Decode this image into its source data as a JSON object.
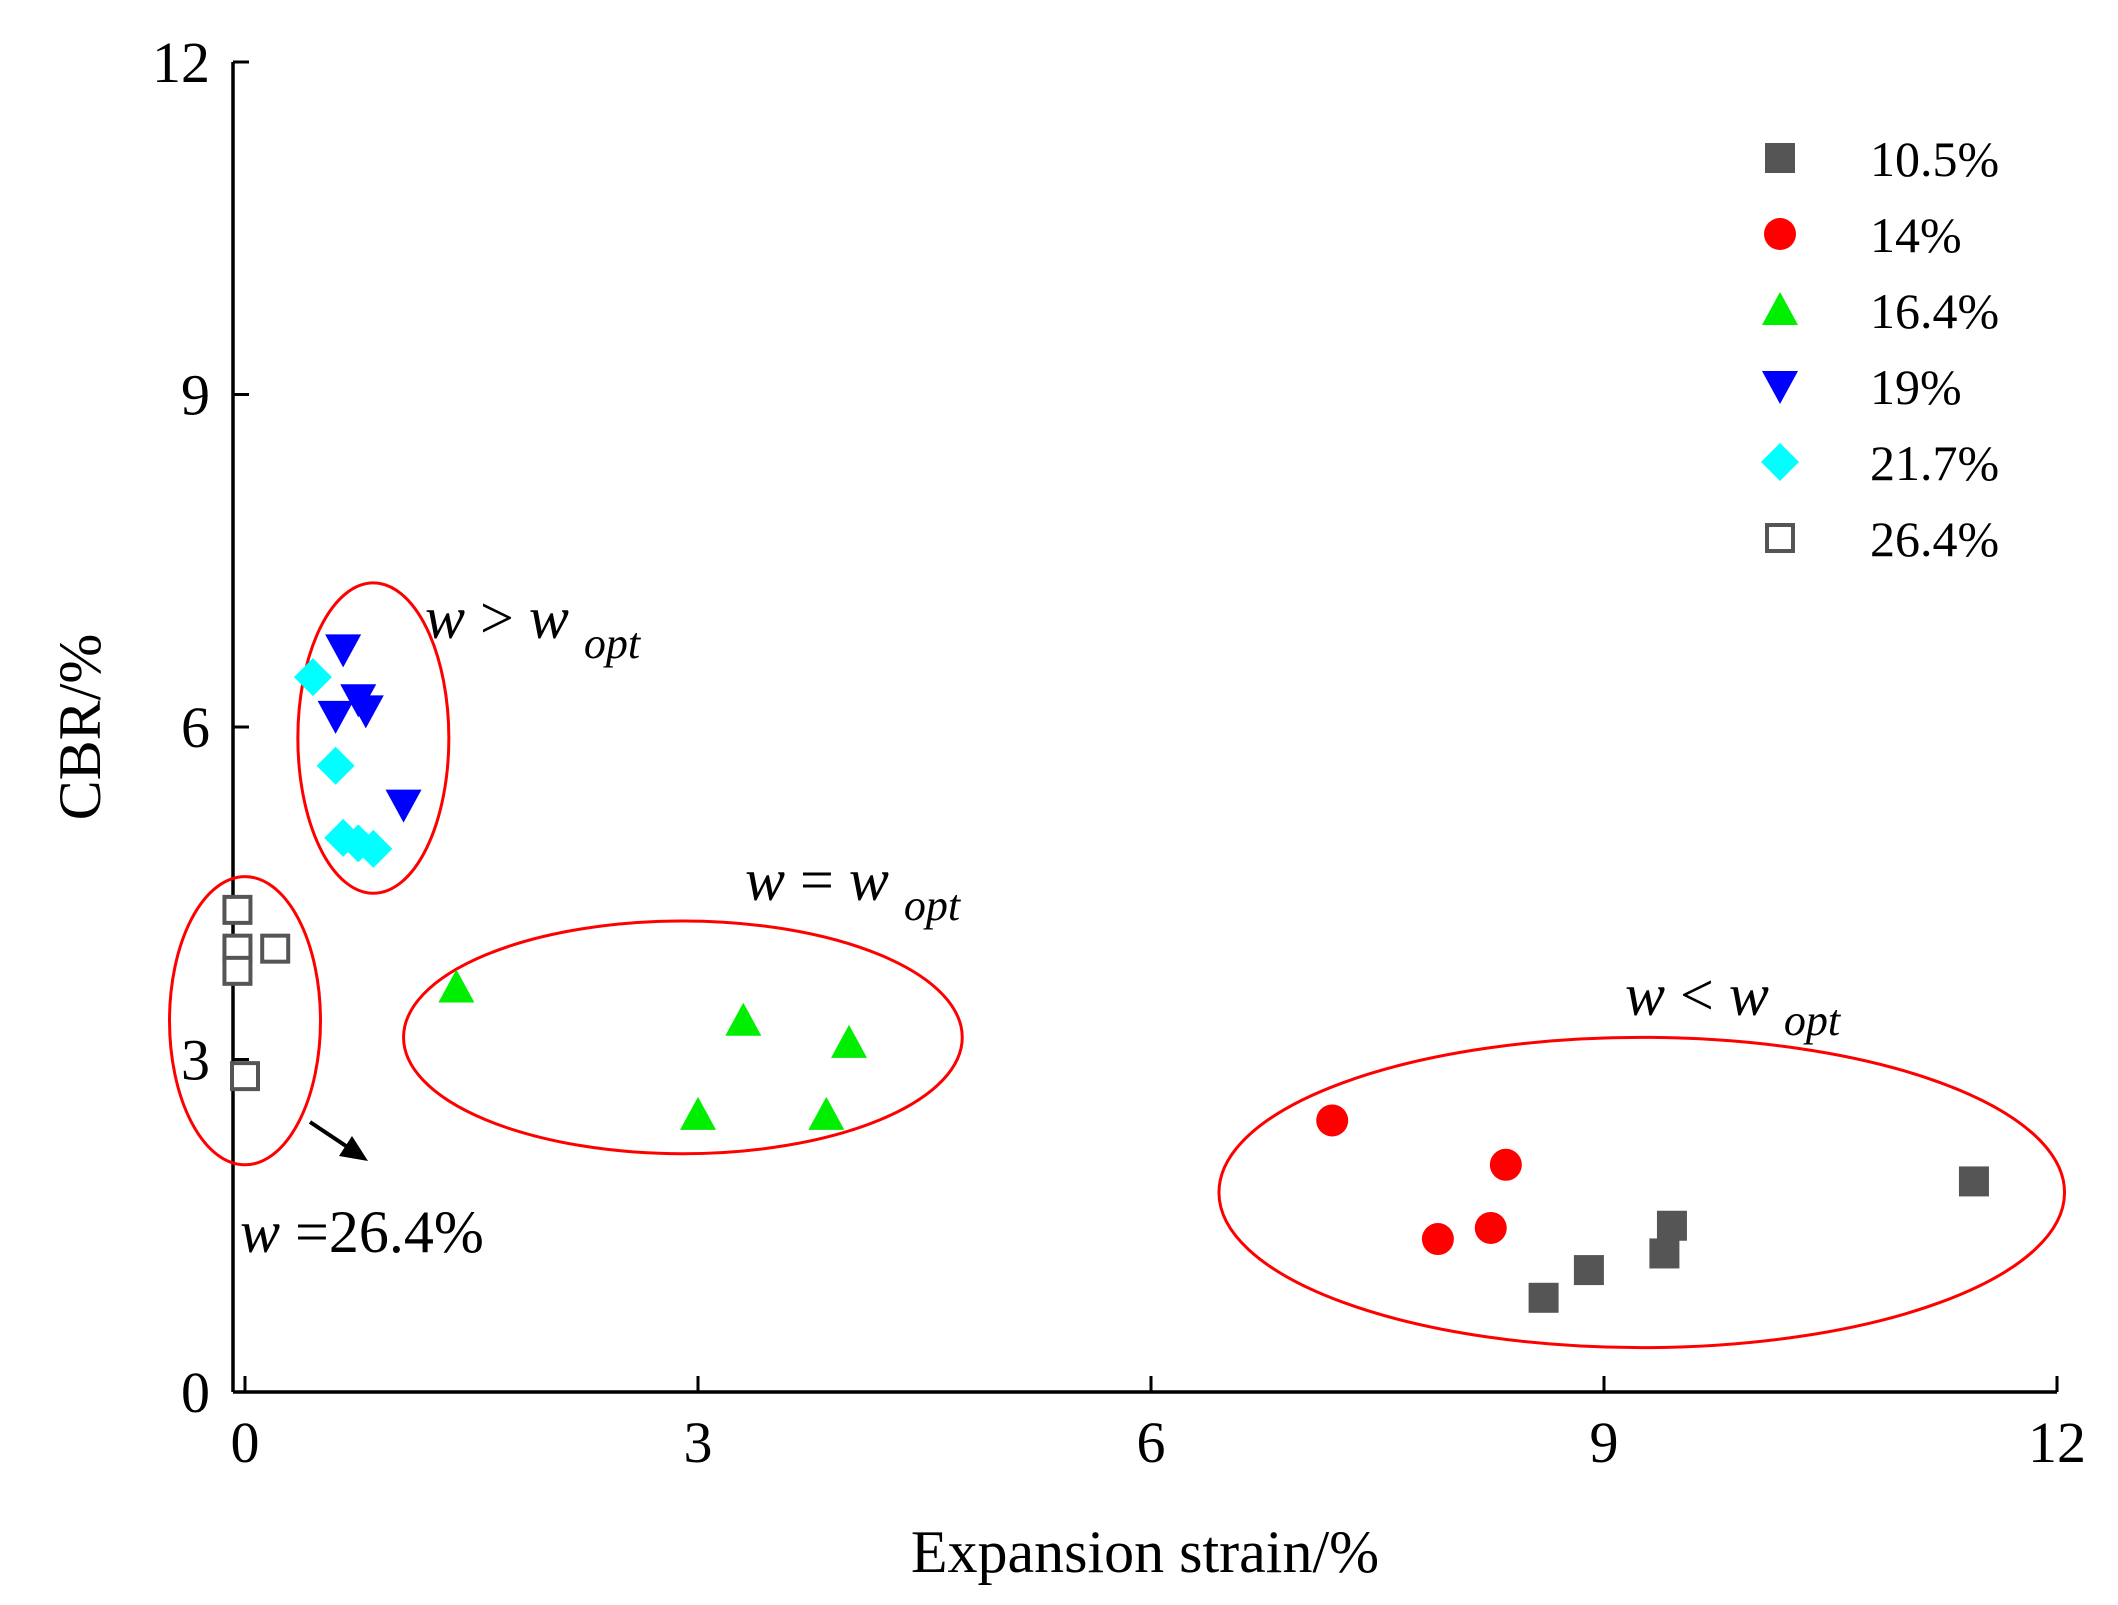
{
  "chart_data": {
    "type": "scatter",
    "title": "",
    "xlabel": "Expansion strain/%",
    "ylabel": "CBR/%",
    "xlim": [
      0,
      12
    ],
    "ylim": [
      0,
      12
    ],
    "xticks": [
      0,
      3,
      6,
      9,
      12
    ],
    "yticks": [
      0,
      3,
      6,
      9,
      12
    ],
    "x_tick_labels": [
      "0",
      "3",
      "6",
      "9",
      "12"
    ],
    "y_tick_labels": [
      "0",
      "3",
      "6",
      "9",
      "12"
    ],
    "grid": false,
    "legend_position": "top-right",
    "series": [
      {
        "name": "10.5%",
        "marker": "filled-square",
        "color": "#555555",
        "points": [
          [
            8.6,
            0.85
          ],
          [
            8.9,
            1.1
          ],
          [
            9.4,
            1.25
          ],
          [
            9.45,
            1.5
          ],
          [
            11.45,
            1.9
          ]
        ]
      },
      {
        "name": "14%",
        "marker": "filled-circle",
        "color": "#ff0000",
        "points": [
          [
            7.2,
            2.45
          ],
          [
            8.35,
            2.05
          ],
          [
            7.9,
            1.38
          ],
          [
            8.25,
            1.48
          ]
        ]
      },
      {
        "name": "16.4%",
        "marker": "filled-triangle-up",
        "color": "#00ee00",
        "points": [
          [
            1.4,
            3.65
          ],
          [
            3.3,
            3.35
          ],
          [
            4.0,
            3.15
          ],
          [
            3.0,
            2.5
          ],
          [
            3.85,
            2.5
          ]
        ]
      },
      {
        "name": "19%",
        "marker": "filled-triangle-down",
        "color": "#0000ff",
        "points": [
          [
            0.65,
            6.7
          ],
          [
            0.75,
            6.25
          ],
          [
            0.8,
            6.15
          ],
          [
            0.6,
            6.1
          ],
          [
            1.05,
            5.3
          ]
        ]
      },
      {
        "name": "21.7%",
        "marker": "filled-diamond",
        "color": "#00ffff",
        "points": [
          [
            0.45,
            6.45
          ],
          [
            0.6,
            5.65
          ],
          [
            0.65,
            5.0
          ],
          [
            0.75,
            4.95
          ],
          [
            0.85,
            4.9
          ]
        ]
      },
      {
        "name": "26.4%",
        "marker": "open-square",
        "color": "#555555",
        "points": [
          [
            -0.05,
            4.35
          ],
          [
            -0.05,
            4.0
          ],
          [
            -0.05,
            3.8
          ],
          [
            0.2,
            4.0
          ],
          [
            0.0,
            2.85
          ]
        ]
      }
    ],
    "groups": [
      {
        "label": "w > w_opt",
        "center": [
          0.85,
          5.9
        ],
        "radius": [
          0.5,
          1.4
        ],
        "color": "#ff0000"
      },
      {
        "label": "w = w_opt",
        "center": [
          2.9,
          3.2
        ],
        "radius": [
          1.85,
          1.05
        ],
        "color": "#ff0000"
      },
      {
        "label": "w = 26.4%",
        "center": [
          0.0,
          3.35
        ],
        "radius": [
          0.5,
          1.3
        ],
        "color": "#ff0000"
      },
      {
        "label": "w < w_opt",
        "center": [
          9.25,
          1.8
        ],
        "radius": [
          2.8,
          1.4
        ],
        "color": "#ff0000"
      }
    ],
    "annotations": {
      "gt": {
        "var": "w",
        "op": ">",
        "var2": "w",
        "sub": "opt"
      },
      "eq": {
        "var": "w",
        "op": "=",
        "var2": "w",
        "sub": "opt"
      },
      "lt": {
        "var": "w",
        "op": "<",
        "var2": "w",
        "sub": "opt"
      },
      "w264": {
        "var": "w",
        "rest": "=26.4%"
      }
    }
  }
}
